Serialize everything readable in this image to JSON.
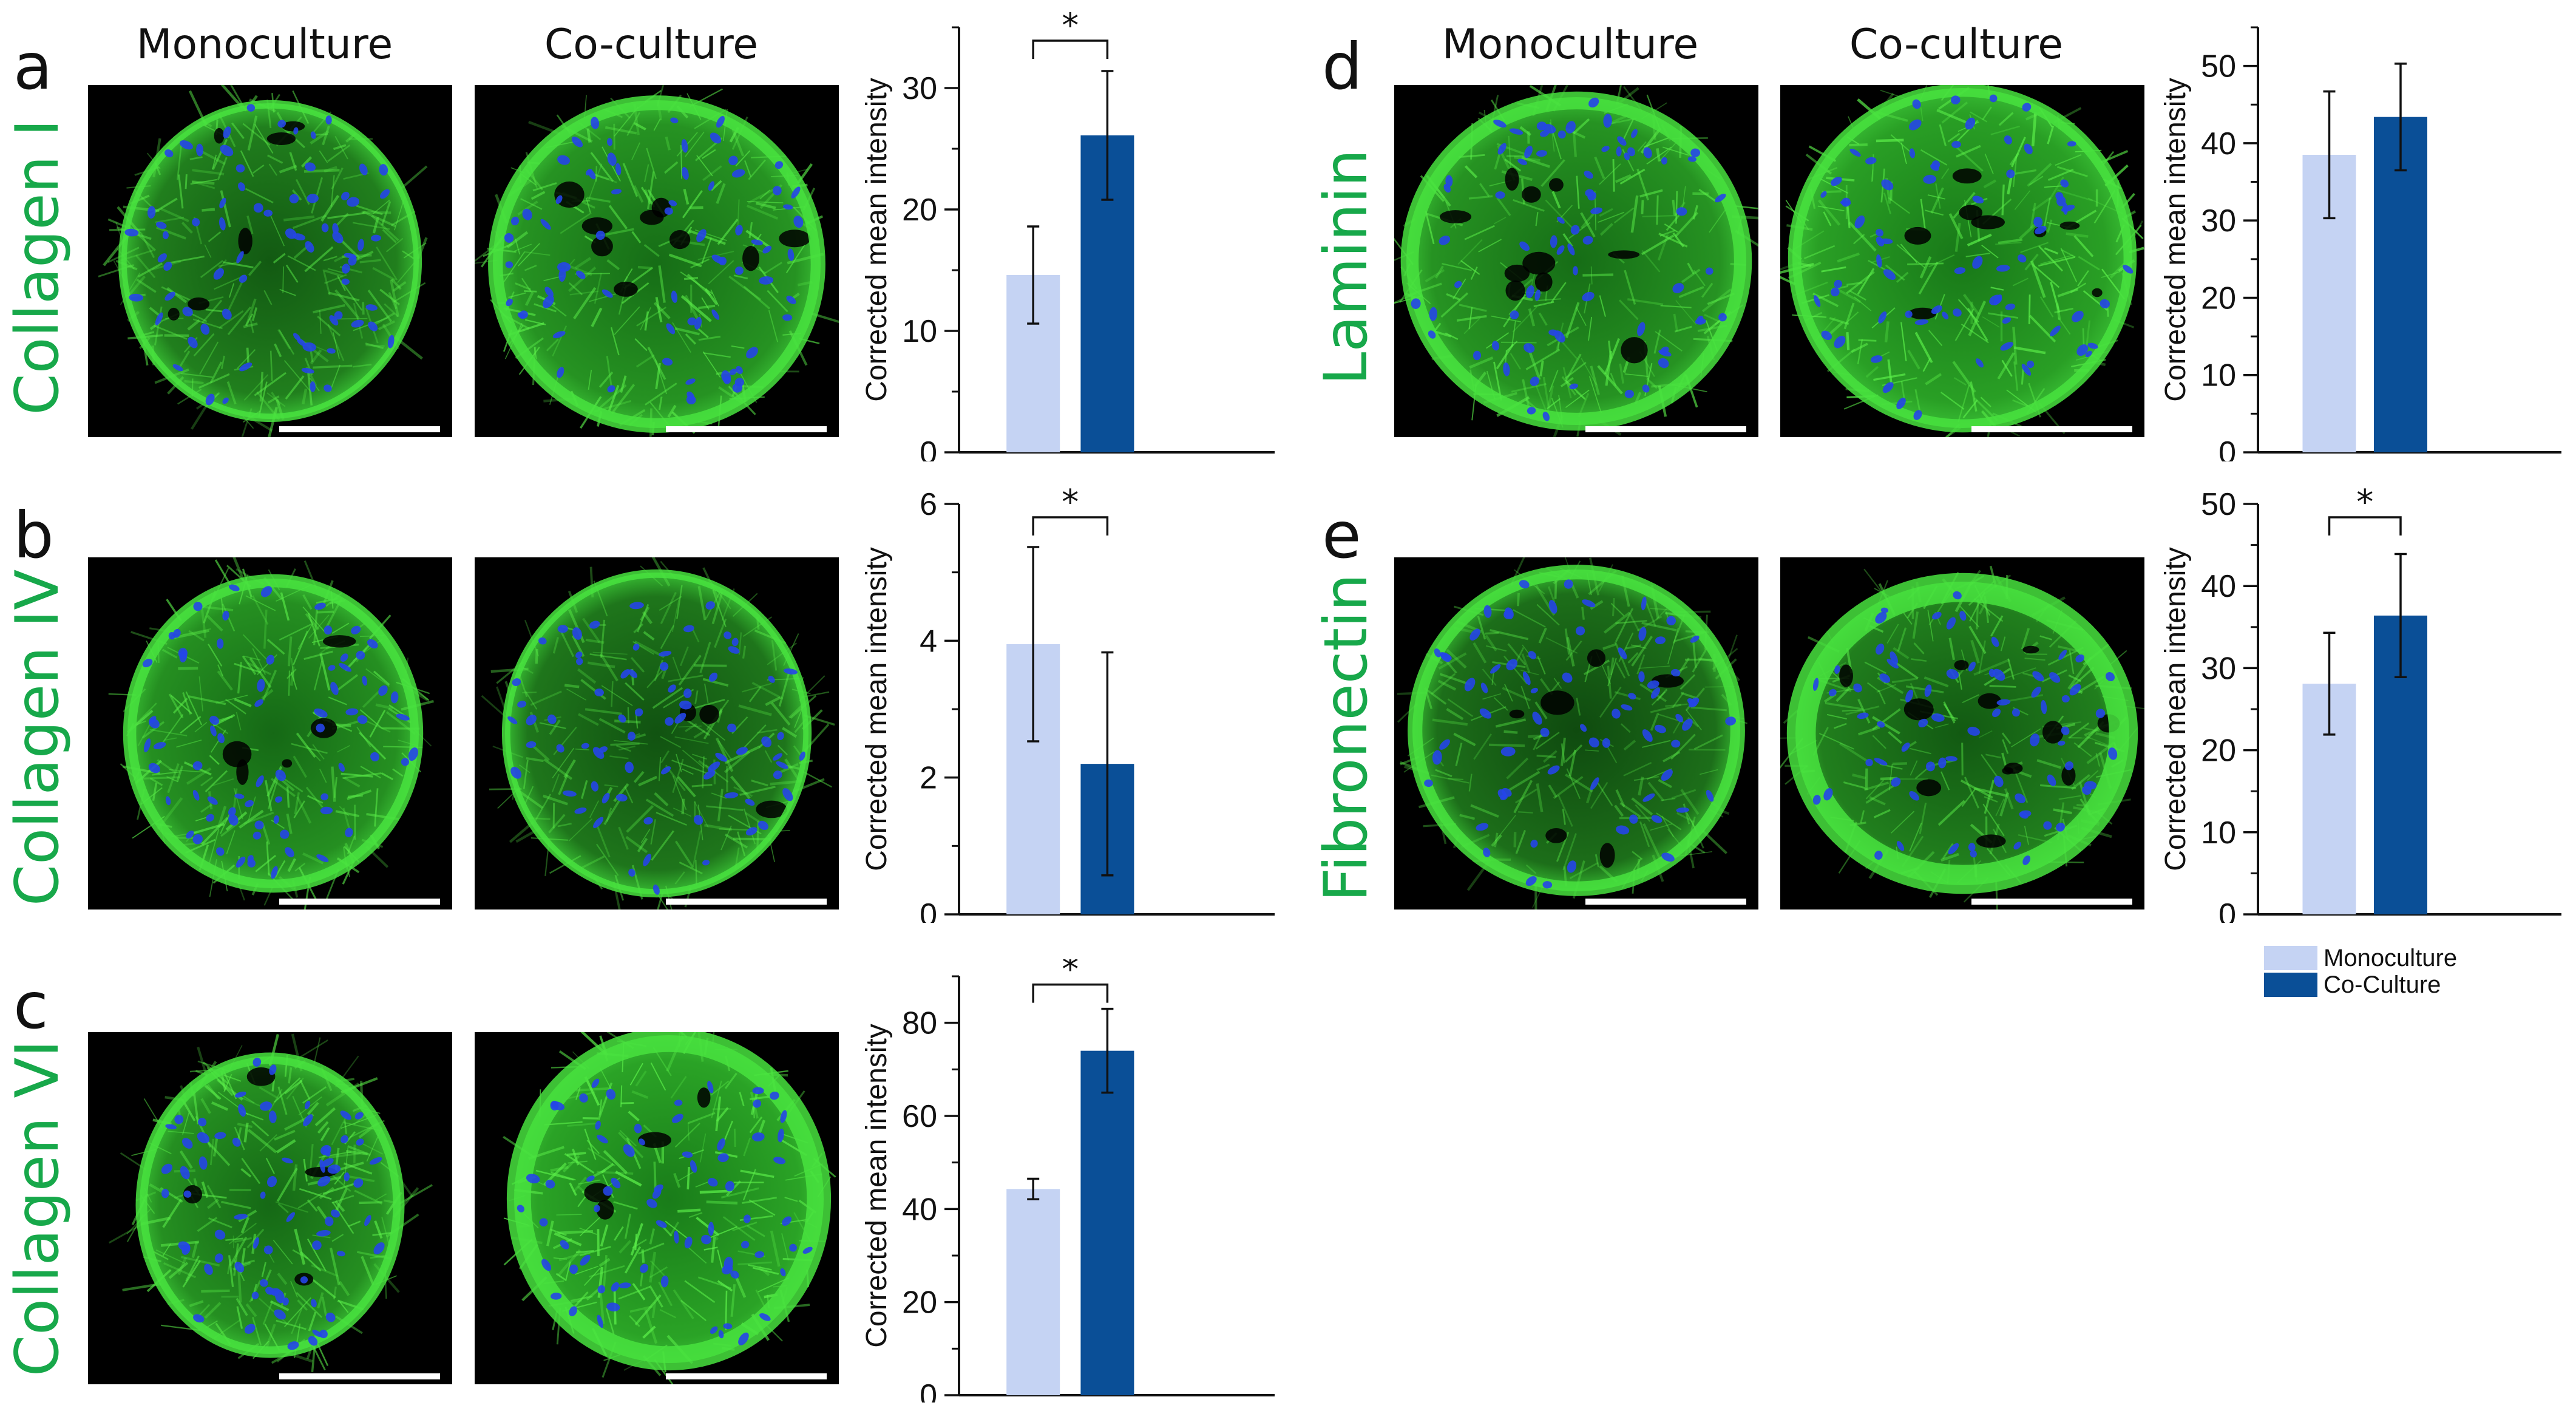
{
  "colors": {
    "mono": "#c5d3f3",
    "co": "#0a4f97",
    "stain_green": "#17a84a",
    "tissue_green": "#3fd23a",
    "nucleus_blue": "#2545e8"
  },
  "column_headers": {
    "mono": "Monoculture",
    "co": "Co-culture"
  },
  "panels": [
    {
      "letter": "a",
      "stain": "Collagen I"
    },
    {
      "letter": "b",
      "stain": "Collagen IV"
    },
    {
      "letter": "c",
      "stain": "Collagen VI"
    },
    {
      "letter": "d",
      "stain": "Laminin"
    },
    {
      "letter": "e",
      "stain": "Fibronectin"
    }
  ],
  "legend": {
    "mono": "Monoculture",
    "co": "Co-Culture"
  },
  "chart_data": [
    {
      "panel": "a",
      "type": "bar",
      "ylabel": "Corrected mean intensity",
      "ylim": [
        0,
        35
      ],
      "yticks": [
        0,
        10,
        20,
        30
      ],
      "minor_step": 5,
      "categories": [
        "Monoculture",
        "Co-Culture"
      ],
      "values": [
        14.6,
        26.1
      ],
      "errors": [
        4.0,
        5.3
      ],
      "significance": "*"
    },
    {
      "panel": "b",
      "type": "bar",
      "ylabel": "Corrected mean intensity",
      "ylim": [
        0,
        6
      ],
      "yticks": [
        0,
        2,
        4,
        6
      ],
      "minor_step": 1,
      "categories": [
        "Monoculture",
        "Co-Culture"
      ],
      "values": [
        3.95,
        2.2
      ],
      "errors": [
        1.42,
        1.63
      ],
      "significance": "*"
    },
    {
      "panel": "c",
      "type": "bar",
      "ylabel": "Corrected mean intensity",
      "ylim": [
        0,
        90
      ],
      "yticks": [
        0,
        20,
        40,
        60,
        80
      ],
      "minor_step": 10,
      "categories": [
        "Monoculture",
        "Co-Culture"
      ],
      "values": [
        44.3,
        74.0
      ],
      "errors": [
        2.2,
        9.0
      ],
      "significance": "*"
    },
    {
      "panel": "d",
      "type": "bar",
      "ylabel": "Corrected mean intensity",
      "ylim": [
        0,
        55
      ],
      "yticks": [
        0,
        10,
        20,
        30,
        40,
        50
      ],
      "minor_step": 5,
      "categories": [
        "Monoculture",
        "Co-Culture"
      ],
      "values": [
        38.5,
        43.4
      ],
      "errors": [
        8.2,
        6.9
      ],
      "significance": ""
    },
    {
      "panel": "e",
      "type": "bar",
      "ylabel": "Corrected mean intensity",
      "ylim": [
        0,
        50
      ],
      "yticks": [
        0,
        10,
        20,
        30,
        40,
        50
      ],
      "minor_step": 5,
      "categories": [
        "Monoculture",
        "Co-Culture"
      ],
      "values": [
        28.1,
        36.4
      ],
      "errors": [
        6.2,
        7.5
      ],
      "significance": "*"
    }
  ]
}
